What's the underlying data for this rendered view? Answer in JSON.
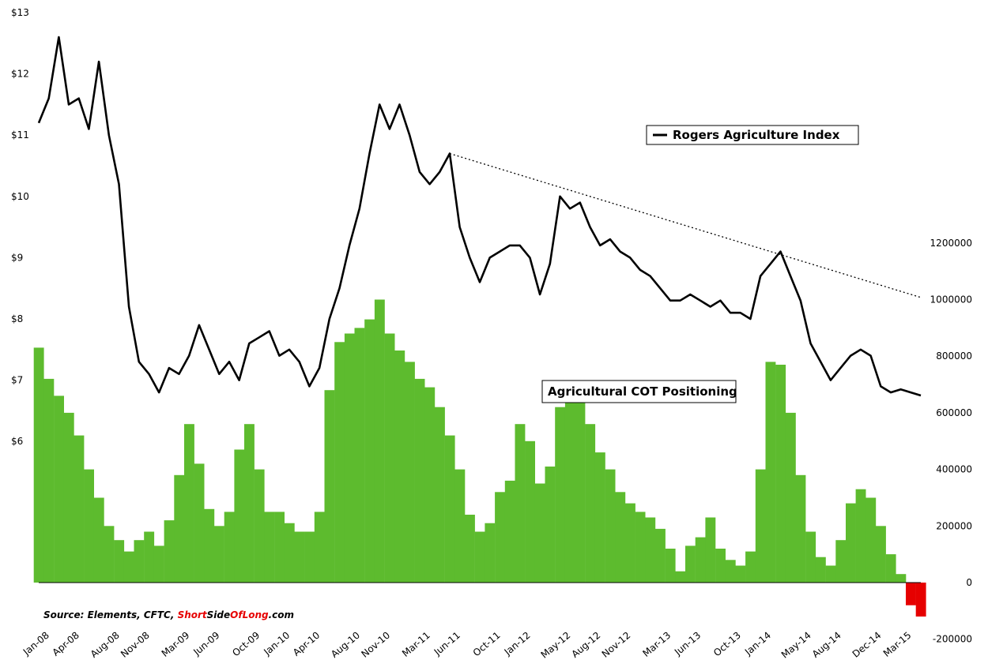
{
  "chart_data": {
    "type": "line+bar",
    "title": "",
    "source": {
      "prefix": "Source: Elements, CFTC, ",
      "brand_parts": [
        "Short",
        "Side",
        "Of",
        "Long"
      ],
      "suffix": ".com",
      "brand_colors": {
        "red": "#e60000",
        "black": "#000000"
      }
    },
    "x_ticks": [
      "Jan-08",
      "Apr-08",
      "Aug-08",
      "Nov-08",
      "Mar-09",
      "Jun-09",
      "Oct-09",
      "Jan-10",
      "Apr-10",
      "Aug-10",
      "Nov-10",
      "Mar-11",
      "Jun-11",
      "Oct-11",
      "Jan-12",
      "May-12",
      "Aug-12",
      "Nov-12",
      "Mar-13",
      "Jun-13",
      "Oct-13",
      "Jan-14",
      "May-14",
      "Aug-14",
      "Dec-14",
      "Mar-15"
    ],
    "left_axis": {
      "ticks": [
        "$13",
        "$12",
        "$11",
        "$10",
        "$9",
        "$8",
        "$7",
        "$6"
      ],
      "values": [
        13,
        12,
        11,
        10,
        9,
        8,
        7,
        6
      ]
    },
    "right_axis": {
      "ticks": [
        "1200000",
        "1000000",
        "800000",
        "600000",
        "400000",
        "200000",
        "0",
        "-200000"
      ],
      "values": [
        1200000,
        1000000,
        800000,
        600000,
        400000,
        200000,
        0,
        -200000
      ]
    },
    "series": [
      {
        "name": "Rogers Agriculture Index",
        "kind": "line",
        "axis": "left",
        "color": "#000000",
        "x": [
          "Jan-08",
          "Feb-08",
          "Mar-08",
          "Apr-08",
          "May-08",
          "Jun-08",
          "Jul-08",
          "Aug-08",
          "Sep-08",
          "Oct-08",
          "Nov-08",
          "Dec-08",
          "Jan-09",
          "Feb-09",
          "Mar-09",
          "Apr-09",
          "May-09",
          "Jun-09",
          "Jul-09",
          "Aug-09",
          "Sep-09",
          "Oct-09",
          "Nov-09",
          "Dec-09",
          "Jan-10",
          "Feb-10",
          "Mar-10",
          "Apr-10",
          "May-10",
          "Jun-10",
          "Jul-10",
          "Aug-10",
          "Sep-10",
          "Oct-10",
          "Nov-10",
          "Dec-10",
          "Jan-11",
          "Feb-11",
          "Mar-11",
          "Apr-11",
          "May-11",
          "Jun-11",
          "Jul-11",
          "Aug-11",
          "Sep-11",
          "Oct-11",
          "Nov-11",
          "Dec-11",
          "Jan-12",
          "Feb-12",
          "Mar-12",
          "Apr-12",
          "May-12",
          "Jun-12",
          "Jul-12",
          "Aug-12",
          "Sep-12",
          "Oct-12",
          "Nov-12",
          "Dec-12",
          "Jan-13",
          "Feb-13",
          "Mar-13",
          "Apr-13",
          "May-13",
          "Jun-13",
          "Jul-13",
          "Aug-13",
          "Sep-13",
          "Oct-13",
          "Nov-13",
          "Dec-13",
          "Jan-14",
          "Feb-14",
          "Mar-14",
          "Apr-14",
          "May-14",
          "Jun-14",
          "Jul-14",
          "Aug-14",
          "Sep-14",
          "Oct-14",
          "Nov-14",
          "Dec-14",
          "Jan-15",
          "Feb-15",
          "Mar-15",
          "Apr-15",
          "May-15"
        ],
        "values": [
          11.2,
          11.6,
          12.6,
          11.5,
          11.6,
          11.1,
          12.2,
          11.0,
          10.2,
          8.2,
          7.3,
          7.1,
          6.8,
          7.2,
          7.1,
          7.4,
          7.9,
          7.5,
          7.1,
          7.3,
          7.0,
          7.6,
          7.7,
          7.8,
          7.4,
          7.5,
          7.3,
          6.9,
          7.2,
          8.0,
          8.5,
          9.2,
          9.8,
          10.7,
          11.5,
          11.1,
          11.5,
          11.0,
          10.4,
          10.2,
          10.4,
          10.7,
          9.5,
          9.0,
          8.6,
          9.0,
          9.1,
          9.2,
          9.2,
          9.0,
          8.4,
          8.9,
          10.0,
          9.8,
          9.9,
          9.5,
          9.2,
          9.3,
          9.1,
          9.0,
          8.8,
          8.7,
          8.5,
          8.3,
          8.3,
          8.4,
          8.3,
          8.2,
          8.3,
          8.1,
          8.1,
          8.0,
          8.7,
          8.9,
          9.1,
          8.7,
          8.3,
          7.6,
          7.3,
          7.0,
          7.2,
          7.4,
          7.5,
          7.4,
          6.9,
          6.8,
          6.85,
          6.8,
          6.75
        ]
      },
      {
        "name": "Agricultural COT Positioning",
        "kind": "bar",
        "axis": "right",
        "color_positive": "#5dbb2e",
        "color_negative": "#e60000",
        "x": [
          "Jan-08",
          "Feb-08",
          "Mar-08",
          "Apr-08",
          "May-08",
          "Jun-08",
          "Jul-08",
          "Aug-08",
          "Sep-08",
          "Oct-08",
          "Nov-08",
          "Dec-08",
          "Jan-09",
          "Feb-09",
          "Mar-09",
          "Apr-09",
          "May-09",
          "Jun-09",
          "Jul-09",
          "Aug-09",
          "Sep-09",
          "Oct-09",
          "Nov-09",
          "Dec-09",
          "Jan-10",
          "Feb-10",
          "Mar-10",
          "Apr-10",
          "May-10",
          "Jun-10",
          "Jul-10",
          "Aug-10",
          "Sep-10",
          "Oct-10",
          "Nov-10",
          "Dec-10",
          "Jan-11",
          "Feb-11",
          "Mar-11",
          "Apr-11",
          "May-11",
          "Jun-11",
          "Jul-11",
          "Aug-11",
          "Sep-11",
          "Oct-11",
          "Nov-11",
          "Dec-11",
          "Jan-12",
          "Feb-12",
          "Mar-12",
          "Apr-12",
          "May-12",
          "Jun-12",
          "Jul-12",
          "Aug-12",
          "Sep-12",
          "Oct-12",
          "Nov-12",
          "Dec-12",
          "Jan-13",
          "Feb-13",
          "Mar-13",
          "Apr-13",
          "May-13",
          "Jun-13",
          "Jul-13",
          "Aug-13",
          "Sep-13",
          "Oct-13",
          "Nov-13",
          "Dec-13",
          "Jan-14",
          "Feb-14",
          "Mar-14",
          "Apr-14",
          "May-14",
          "Jun-14",
          "Jul-14",
          "Aug-14",
          "Sep-14",
          "Oct-14",
          "Nov-14",
          "Dec-14",
          "Jan-15",
          "Feb-15",
          "Mar-15",
          "Apr-15",
          "May-15"
        ],
        "values": [
          830000,
          720000,
          660000,
          600000,
          520000,
          400000,
          300000,
          200000,
          150000,
          110000,
          150000,
          180000,
          130000,
          220000,
          380000,
          560000,
          420000,
          260000,
          200000,
          250000,
          470000,
          560000,
          400000,
          250000,
          250000,
          210000,
          180000,
          180000,
          250000,
          680000,
          850000,
          880000,
          900000,
          930000,
          1000000,
          880000,
          820000,
          780000,
          720000,
          690000,
          620000,
          520000,
          400000,
          240000,
          180000,
          210000,
          320000,
          360000,
          560000,
          500000,
          350000,
          410000,
          620000,
          700000,
          640000,
          560000,
          460000,
          400000,
          320000,
          280000,
          250000,
          230000,
          190000,
          120000,
          40000,
          130000,
          160000,
          230000,
          120000,
          80000,
          60000,
          110000,
          400000,
          780000,
          770000,
          600000,
          380000,
          180000,
          90000,
          60000,
          150000,
          280000,
          330000,
          300000,
          200000,
          100000,
          30000,
          -80000,
          -120000
        ]
      }
    ],
    "trendline": {
      "style": "dotted",
      "from": {
        "x": "Jun-11",
        "y": 10.7
      },
      "to": {
        "x": "May-15",
        "y": 8.35
      }
    },
    "labels": {
      "line_legend": "Rogers Agriculture Index",
      "bar_label": "Agricultural COT Positioning"
    },
    "grid": false
  }
}
